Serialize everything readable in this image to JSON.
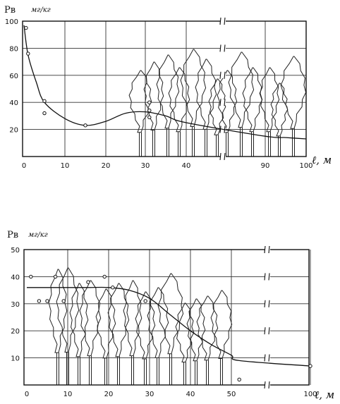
{
  "chart_data": [
    {
      "type": "line",
      "ylabel": "Pв",
      "yunit": "мг/кг",
      "xlabel": "ℓ, м",
      "x_ticks": [
        "0",
        "10",
        "20",
        "30",
        "40",
        "90",
        "100"
      ],
      "y_ticks": [
        "20",
        "40",
        "60",
        "80",
        "100"
      ],
      "ylim": [
        0,
        100
      ],
      "grid": true,
      "axis_break_between": [
        "40",
        "90"
      ],
      "series": [
        {
          "x": [
            "0",
            "1",
            "3",
            "5",
            "10",
            "15",
            "20",
            "25",
            "30",
            "35",
            "40",
            "90",
            "95",
            "100"
          ],
          "values": [
            97,
            75,
            55,
            40,
            28,
            23,
            26,
            32,
            33,
            30,
            25,
            15,
            14,
            13
          ]
        }
      ],
      "points": [
        {
          "x": "0.5",
          "y": 95
        },
        {
          "x": "1",
          "y": 76
        },
        {
          "x": "5",
          "y": 41
        },
        {
          "x": "5",
          "y": 32
        },
        {
          "x": "15",
          "y": 23
        },
        {
          "x": "31",
          "y": 40
        },
        {
          "x": "31",
          "y": 34
        },
        {
          "x": "31",
          "y": 29
        }
      ]
    },
    {
      "type": "line",
      "ylabel": "Pв",
      "yunit": "мг/кг",
      "xlabel": "ℓ, м",
      "x_ticks": [
        "0",
        "10",
        "20",
        "30",
        "40",
        "50",
        "100"
      ],
      "y_ticks": [
        "10",
        "20",
        "30",
        "40",
        "50"
      ],
      "ylim": [
        0,
        50
      ],
      "grid": true,
      "axis_break_between": [
        "50",
        "100"
      ],
      "series": [
        {
          "x": [
            "0",
            "5",
            "10",
            "15",
            "20",
            "25",
            "30",
            "35",
            "40",
            "45",
            "50",
            "55",
            "100"
          ],
          "values": [
            36,
            36,
            36,
            36,
            36,
            35,
            32,
            26,
            20,
            15,
            11,
            9,
            7
          ]
        }
      ],
      "points": [
        {
          "x": "1",
          "y": 40
        },
        {
          "x": "3",
          "y": 31
        },
        {
          "x": "5",
          "y": 31
        },
        {
          "x": "7",
          "y": 40
        },
        {
          "x": "9",
          "y": 31
        },
        {
          "x": "15",
          "y": 38
        },
        {
          "x": "19",
          "y": 40
        },
        {
          "x": "21",
          "y": 36
        },
        {
          "x": "29",
          "y": 31
        },
        {
          "x": "55",
          "y": 2
        },
        {
          "x": "100",
          "y": 7
        }
      ]
    }
  ]
}
